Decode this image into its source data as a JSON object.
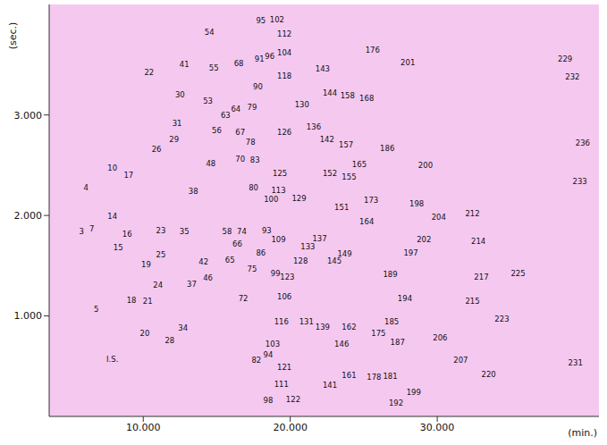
{
  "chart_data": {
    "type": "scatter",
    "x_label": "(min.)",
    "y_label": "(sec.)",
    "xlim": [
      3.6,
      41
    ],
    "ylim": [
      0,
      4.1
    ],
    "xticks": [
      {
        "value": 10,
        "label": "10.000"
      },
      {
        "value": 20,
        "label": "20.000"
      },
      {
        "value": 30,
        "label": "30.000"
      }
    ],
    "yticks": [
      {
        "value": 1,
        "label": "1.000"
      },
      {
        "value": 2,
        "label": "2.000"
      },
      {
        "value": 3,
        "label": "3.000"
      }
    ],
    "grid": false,
    "color": "#f5c8f0",
    "labels": [
      "54",
      "95",
      "102",
      "112",
      "96",
      "91",
      "104",
      "68",
      "22",
      "41",
      "55",
      "118",
      "143",
      "176",
      "201",
      "229",
      "232",
      "90",
      "30",
      "53",
      "64",
      "63",
      "79",
      "144",
      "158",
      "168",
      "130",
      "31",
      "56",
      "67",
      "126",
      "136",
      "142",
      "157",
      "29",
      "78",
      "26",
      "186",
      "236",
      "10",
      "17",
      "48",
      "70",
      "83",
      "125",
      "165",
      "200",
      "152",
      "155",
      "4",
      "38",
      "80",
      "113",
      "100",
      "129",
      "233",
      "173",
      "198",
      "151",
      "212",
      "204",
      "14",
      "23",
      "164",
      "3",
      "7",
      "35",
      "58",
      "74",
      "93",
      "137",
      "202",
      "109",
      "214",
      "16",
      "15",
      "66",
      "133",
      "197",
      "86",
      "149",
      "145",
      "25",
      "128",
      "42",
      "65",
      "75",
      "19",
      "99",
      "123",
      "189",
      "217",
      "225",
      "46",
      "24",
      "37",
      "72",
      "106",
      "18",
      "21",
      "194",
      "215",
      "5",
      "223",
      "116",
      "131",
      "139",
      "162",
      "185",
      "20",
      "175",
      "34",
      "206",
      "28",
      "146",
      "187",
      "103",
      "I.S.",
      "82",
      "94",
      "207",
      "231",
      "121",
      "220",
      "161",
      "178",
      "181",
      "141",
      "111",
      "199",
      "122",
      "98",
      "192"
    ],
    "x": [
      14.5,
      18.0,
      19.1,
      19.6,
      18.6,
      17.9,
      19.6,
      16.5,
      10.4,
      12.8,
      14.8,
      19.6,
      22.2,
      25.6,
      28.0,
      38.7,
      39.2,
      17.8,
      12.5,
      14.4,
      16.3,
      15.6,
      17.4,
      22.7,
      23.9,
      25.2,
      20.8,
      12.3,
      15.0,
      16.6,
      19.6,
      21.6,
      22.5,
      23.8,
      12.1,
      17.3,
      10.9,
      26.6,
      39.9,
      7.9,
      9.0,
      14.6,
      16.6,
      17.6,
      19.3,
      24.7,
      29.2,
      22.7,
      24.0,
      6.1,
      13.4,
      17.5,
      19.2,
      18.7,
      20.6,
      39.7,
      25.5,
      28.6,
      23.5,
      32.4,
      30.1,
      7.9,
      11.2,
      25.2,
      5.8,
      6.5,
      12.8,
      15.7,
      16.7,
      18.4,
      22.0,
      29.1,
      19.2,
      32.8,
      8.9,
      8.3,
      16.4,
      21.2,
      28.2,
      18.0,
      23.7,
      23.0,
      11.2,
      20.7,
      14.1,
      15.9,
      17.4,
      10.2,
      19.0,
      19.8,
      26.8,
      33.0,
      35.5,
      14.4,
      11.0,
      13.3,
      16.8,
      19.6,
      9.2,
      10.3,
      27.8,
      32.4,
      6.8,
      34.4,
      19.4,
      21.1,
      22.2,
      24.0,
      26.9,
      10.1,
      26.0,
      12.7,
      30.2,
      11.8,
      23.5,
      27.3,
      18.8,
      7.9,
      17.7,
      18.5,
      31.6,
      39.4,
      19.6,
      33.5,
      24.0,
      25.7,
      26.8,
      22.7,
      19.4,
      28.4,
      20.2,
      18.5,
      27.2
    ],
    "y": [
      3.82,
      3.94,
      3.95,
      3.81,
      3.58,
      3.56,
      3.62,
      3.51,
      3.42,
      3.5,
      3.47,
      3.39,
      3.46,
      3.65,
      3.52,
      3.56,
      3.38,
      3.28,
      3.2,
      3.14,
      3.06,
      3.0,
      3.08,
      3.22,
      3.19,
      3.17,
      3.1,
      2.92,
      2.85,
      2.83,
      2.83,
      2.88,
      2.76,
      2.7,
      2.76,
      2.73,
      2.66,
      2.67,
      2.72,
      2.47,
      2.4,
      2.52,
      2.56,
      2.55,
      2.42,
      2.51,
      2.5,
      2.42,
      2.38,
      2.28,
      2.24,
      2.28,
      2.25,
      2.16,
      2.17,
      2.34,
      2.15,
      2.12,
      2.08,
      2.02,
      1.98,
      1.99,
      1.85,
      1.94,
      1.84,
      1.87,
      1.84,
      1.84,
      1.84,
      1.85,
      1.77,
      1.76,
      1.76,
      1.74,
      1.81,
      1.68,
      1.72,
      1.69,
      1.63,
      1.63,
      1.62,
      1.55,
      1.61,
      1.55,
      1.54,
      1.56,
      1.47,
      1.51,
      1.42,
      1.39,
      1.41,
      1.39,
      1.42,
      1.38,
      1.31,
      1.32,
      1.17,
      1.19,
      1.16,
      1.15,
      1.17,
      1.15,
      1.07,
      0.97,
      0.94,
      0.94,
      0.89,
      0.89,
      0.94,
      0.83,
      0.83,
      0.88,
      0.78,
      0.76,
      0.72,
      0.74,
      0.72,
      0.57,
      0.56,
      0.61,
      0.56,
      0.53,
      0.49,
      0.42,
      0.41,
      0.39,
      0.4,
      0.31,
      0.32,
      0.24,
      0.17,
      0.16,
      0.13
    ]
  }
}
